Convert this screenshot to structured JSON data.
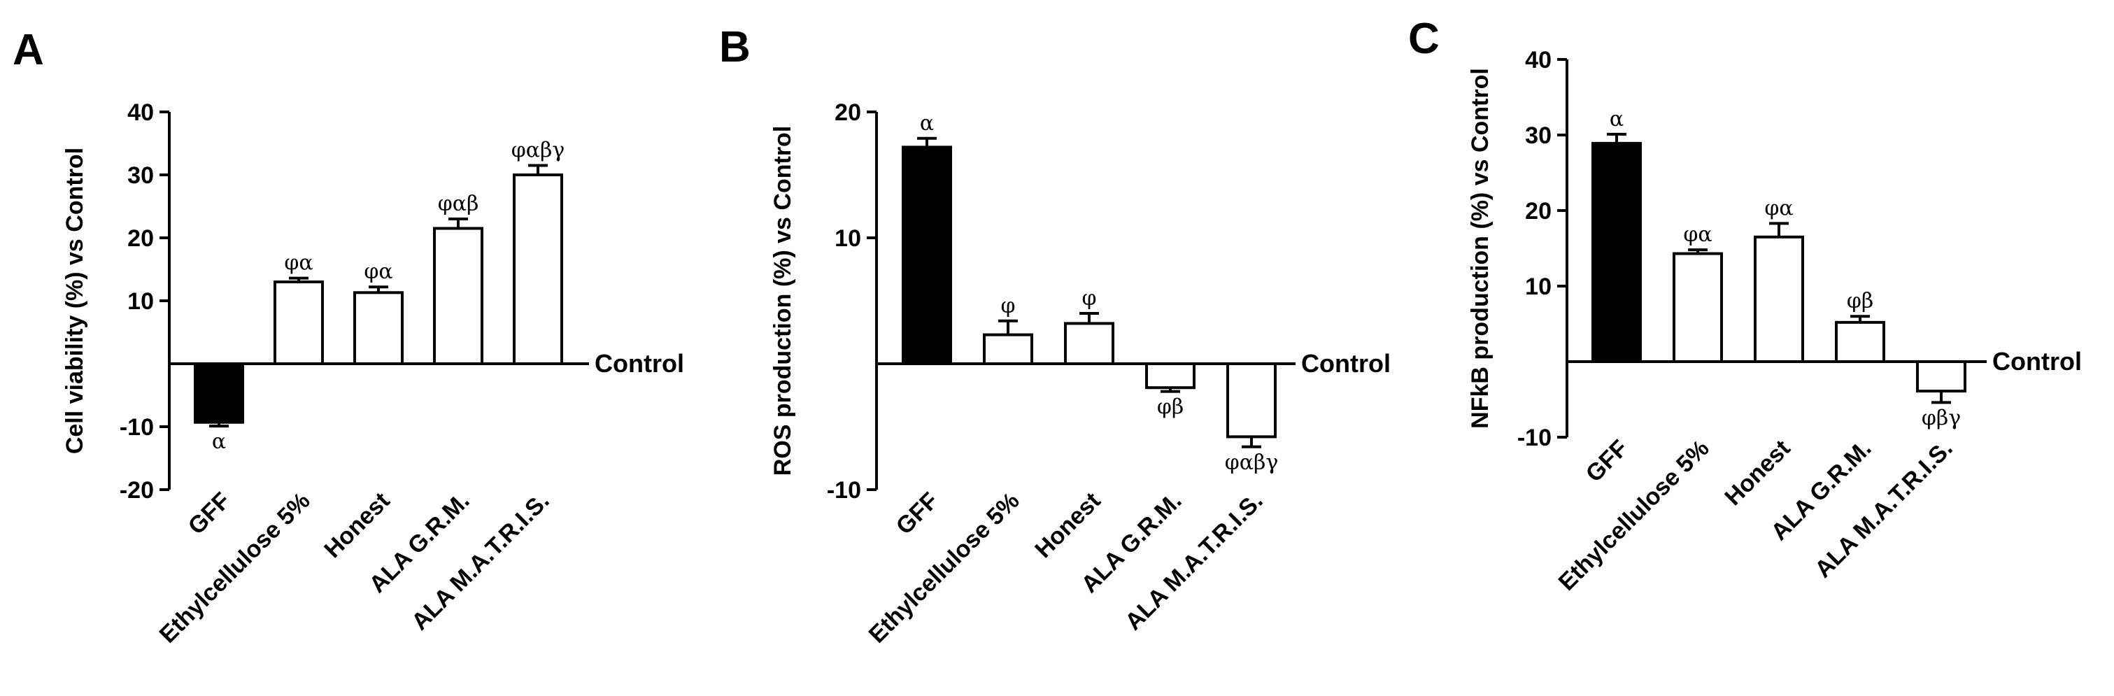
{
  "chart_data": [
    {
      "type": "bar",
      "panel_label": "A",
      "ylabel": "Cell viability (%) vs Control",
      "reference_label": "Control",
      "ylim": [
        -20,
        40
      ],
      "yticks": [
        -20,
        -10,
        10,
        20,
        30,
        40
      ],
      "categories": [
        "GFF",
        "Ethylcellulose 5%",
        "Honest",
        "ALA G.R.M.",
        "ALA M.A.T.R.I.S."
      ],
      "values": [
        -9.3,
        13.0,
        11.3,
        21.5,
        30.0
      ],
      "errors": [
        0.6,
        0.6,
        0.9,
        1.5,
        1.5
      ],
      "fills": [
        "#000000",
        "#ffffff",
        "#ffffff",
        "#ffffff",
        "#ffffff"
      ],
      "significance": [
        "α",
        "φα",
        "φα",
        "φαβ",
        "φαβγ"
      ]
    },
    {
      "type": "bar",
      "panel_label": "B",
      "ylabel": "ROS production (%) vs Control",
      "reference_label": "Control",
      "ylim": [
        -10,
        20
      ],
      "yticks": [
        -10,
        10,
        20
      ],
      "categories": [
        "GFF",
        "Ethylcellulose 5%",
        "Honest",
        "ALA G.R.M.",
        "ALA M.A.T.R.I.S."
      ],
      "values": [
        17.2,
        2.3,
        3.2,
        -1.9,
        -5.8
      ],
      "errors": [
        0.7,
        1.1,
        0.8,
        0.3,
        0.8
      ],
      "fills": [
        "#000000",
        "#ffffff",
        "#ffffff",
        "#ffffff",
        "#ffffff"
      ],
      "significance": [
        "α",
        "φ",
        "φ",
        "φβ",
        "φαβγ"
      ]
    },
    {
      "type": "bar",
      "panel_label": "C",
      "ylabel": "NFkB production (%) vs Control",
      "reference_label": "Control",
      "ylim": [
        -10,
        40
      ],
      "yticks": [
        -10,
        10,
        20,
        30,
        40
      ],
      "categories": [
        "GFF",
        "Ethylcellulose 5%",
        "Honest",
        "ALA G.R.M.",
        "ALA M.A.T.R.I.S."
      ],
      "values": [
        28.9,
        14.3,
        16.5,
        5.2,
        -3.9
      ],
      "errors": [
        1.2,
        0.5,
        1.8,
        0.8,
        1.5
      ],
      "fills": [
        "#000000",
        "#ffffff",
        "#ffffff",
        "#ffffff",
        "#ffffff"
      ],
      "significance": [
        "α",
        "φα",
        "φα",
        "φβ",
        "φβγ"
      ]
    }
  ]
}
